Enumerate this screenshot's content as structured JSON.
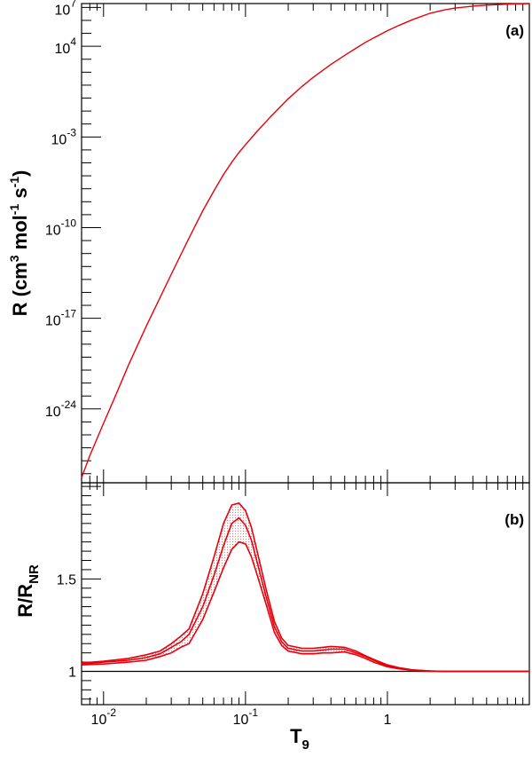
{
  "chart_data": [
    {
      "type": "line",
      "panel_label": "(a)",
      "ylabel": "R (cm3 mol-1 s-1)",
      "ylabel_parts": {
        "main": "R (cm",
        "sup1": "3",
        "mid1": " mol",
        "sup2": "-1",
        "mid2": " s",
        "sup3": "-1",
        "end": ")"
      },
      "xscale": "log",
      "yscale": "log",
      "xlim": [
        0.007,
        10
      ],
      "ylim_log10": [
        -29.7,
        7.3
      ],
      "ytick_labels": [
        {
          "base": "10",
          "exp": "7",
          "log10": 7
        },
        {
          "base": "10",
          "exp": "4",
          "log10": 4
        },
        {
          "base": "10",
          "exp": "-3",
          "log10": -3
        },
        {
          "base": "10",
          "exp": "-10",
          "log10": -10
        },
        {
          "base": "10",
          "exp": "-17",
          "log10": -17
        },
        {
          "base": "10",
          "exp": "-24",
          "log10": -24
        }
      ],
      "series": [
        {
          "color": "#e8000b",
          "x": [
            0.007,
            0.008,
            0.01,
            0.012,
            0.015,
            0.02,
            0.025,
            0.03,
            0.04,
            0.05,
            0.06,
            0.07,
            0.08,
            0.09,
            0.1,
            0.12,
            0.15,
            0.2,
            0.25,
            0.3,
            0.4,
            0.5,
            0.6,
            0.7,
            0.8,
            1.0,
            1.2,
            1.5,
            2.0,
            2.5,
            3.0,
            4.0,
            5.0,
            7.0,
            10.0
          ],
          "log10_y": [
            -29.3,
            -27.6,
            -25.1,
            -23.1,
            -20.6,
            -17.6,
            -15.4,
            -13.6,
            -10.8,
            -8.7,
            -7.15,
            -5.9,
            -4.95,
            -4.2,
            -3.6,
            -2.6,
            -1.45,
            -0.05,
            0.9,
            1.6,
            2.6,
            3.3,
            3.85,
            4.3,
            4.65,
            5.2,
            5.6,
            6.05,
            6.55,
            6.8,
            6.95,
            7.1,
            7.18,
            7.25,
            7.3
          ]
        }
      ]
    },
    {
      "type": "line",
      "panel_label": "(b)",
      "ylabel": "R/RNR",
      "ylabel_parts": {
        "main": "R/R",
        "sub": "NR"
      },
      "xlabel": "T9",
      "xlabel_parts": {
        "main": "T",
        "sub": "9"
      },
      "xscale": "log",
      "xlim": [
        0.007,
        10
      ],
      "ylim": [
        0.82,
        2.02
      ],
      "ytick_labels": [
        {
          "text": "1",
          "value": 1.0
        },
        {
          "text": "1.5",
          "value": 1.5
        }
      ],
      "xtick_labels": [
        {
          "base": "10",
          "exp": "-2",
          "value": 0.01
        },
        {
          "base": "10",
          "exp": "-1",
          "value": 0.1
        },
        {
          "base": "1",
          "exp": "",
          "value": 1.0
        }
      ],
      "reference_line": 1.0,
      "x": [
        0.007,
        0.01,
        0.015,
        0.02,
        0.025,
        0.03,
        0.035,
        0.04,
        0.05,
        0.06,
        0.07,
        0.08,
        0.09,
        0.1,
        0.11,
        0.12,
        0.14,
        0.16,
        0.18,
        0.2,
        0.25,
        0.3,
        0.35,
        0.4,
        0.5,
        0.6,
        0.7,
        0.8,
        1.0,
        1.2,
        1.5,
        2.0,
        2.5,
        3.0,
        5.0,
        10.0
      ],
      "series": [
        {
          "color": "#e8000b",
          "role": "upper",
          "values": [
            1.045,
            1.055,
            1.07,
            1.09,
            1.11,
            1.15,
            1.19,
            1.23,
            1.42,
            1.62,
            1.8,
            1.9,
            1.91,
            1.87,
            1.78,
            1.66,
            1.44,
            1.27,
            1.18,
            1.14,
            1.125,
            1.125,
            1.13,
            1.135,
            1.13,
            1.11,
            1.085,
            1.065,
            1.035,
            1.02,
            1.008,
            1.002,
            1.0,
            1.0,
            1.0,
            1.0
          ]
        },
        {
          "color": "#e8000b",
          "role": "central",
          "values": [
            1.04,
            1.05,
            1.06,
            1.075,
            1.095,
            1.13,
            1.16,
            1.2,
            1.35,
            1.52,
            1.68,
            1.8,
            1.83,
            1.79,
            1.71,
            1.6,
            1.4,
            1.24,
            1.16,
            1.125,
            1.11,
            1.11,
            1.115,
            1.12,
            1.12,
            1.1,
            1.08,
            1.06,
            1.03,
            1.018,
            1.007,
            1.002,
            1.0,
            1.0,
            1.0,
            1.0
          ]
        },
        {
          "color": "#e8000b",
          "role": "lower",
          "values": [
            1.035,
            1.04,
            1.05,
            1.06,
            1.08,
            1.1,
            1.13,
            1.15,
            1.28,
            1.43,
            1.56,
            1.66,
            1.7,
            1.69,
            1.62,
            1.53,
            1.36,
            1.21,
            1.14,
            1.11,
            1.095,
            1.095,
            1.1,
            1.1,
            1.105,
            1.09,
            1.07,
            1.05,
            1.025,
            1.014,
            1.005,
            1.001,
            1.0,
            1.0,
            1.0,
            1.0
          ]
        }
      ]
    }
  ]
}
